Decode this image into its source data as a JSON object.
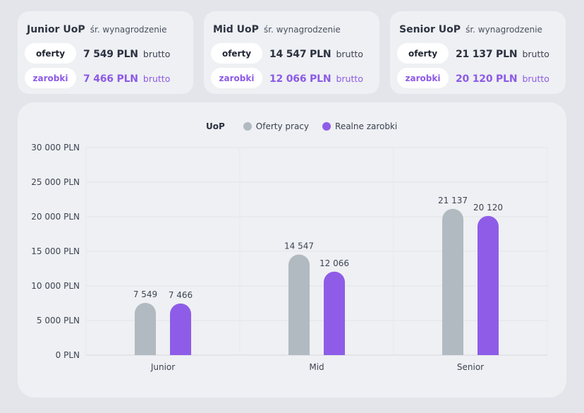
{
  "cards": [
    {
      "level": "Junior UoP",
      "subtitle": "śr. wynagrodzenie",
      "offers_label": "oferty",
      "offers_value": "7 549 PLN",
      "earnings_label": "zarobki",
      "earnings_value": "7 466 PLN",
      "unit": "brutto"
    },
    {
      "level": "Mid UoP",
      "subtitle": "śr. wynagrodzenie",
      "offers_label": "oferty",
      "offers_value": "14 547 PLN",
      "earnings_label": "zarobki",
      "earnings_value": "12 066 PLN",
      "unit": "brutto"
    },
    {
      "level": "Senior UoP",
      "subtitle": "śr. wynagrodzenie",
      "offers_label": "oferty",
      "offers_value": "21 137 PLN",
      "earnings_label": "zarobki",
      "earnings_value": "20 120 PLN",
      "unit": "brutto"
    }
  ],
  "legend": {
    "title": "UoP",
    "items": [
      {
        "label": "Oferty pracy",
        "color": "#b1bac0"
      },
      {
        "label": "Realne zarobki",
        "color": "#8f5ce8"
      }
    ]
  },
  "chart_data": {
    "type": "bar",
    "categories": [
      "Junior",
      "Mid",
      "Senior"
    ],
    "series": [
      {
        "name": "Oferty pracy",
        "values": [
          7549,
          14547,
          21137
        ],
        "labels": [
          "7 549",
          "14 547",
          "21 137"
        ],
        "color": "#b1bac0"
      },
      {
        "name": "Realne zarobki",
        "values": [
          7466,
          12066,
          20120
        ],
        "labels": [
          "7 466",
          "12 066",
          "20 120"
        ],
        "color": "#8f5ce8"
      }
    ],
    "ylim": [
      0,
      30000
    ],
    "yticks": [
      0,
      5000,
      10000,
      15000,
      20000,
      25000,
      30000
    ],
    "ytick_labels": [
      "0 PLN",
      "5 000 PLN",
      "10 000 PLN",
      "15 000 PLN",
      "20 000 PLN",
      "25 000 PLN",
      "30 000 PLN"
    ],
    "grid": true,
    "legend_position": "top"
  }
}
